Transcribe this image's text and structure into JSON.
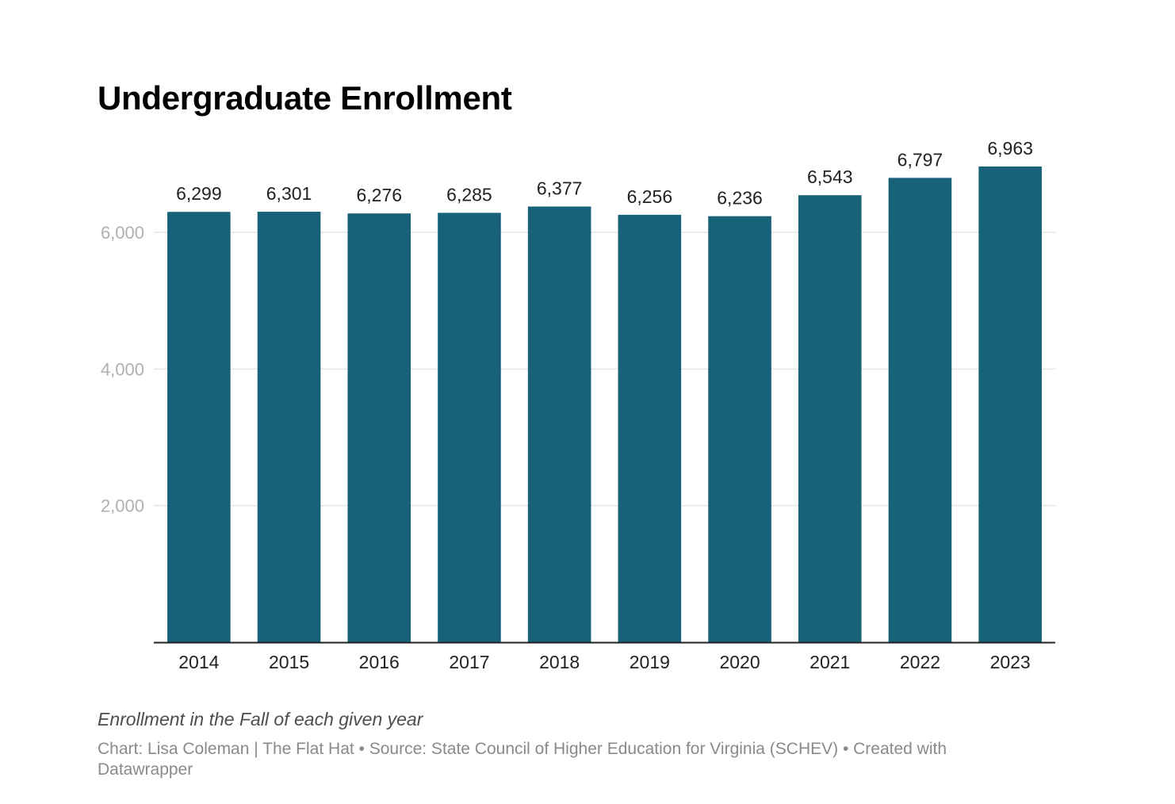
{
  "chart_data": {
    "type": "bar",
    "title": "Undergraduate Enrollment",
    "categories": [
      "2014",
      "2015",
      "2016",
      "2017",
      "2018",
      "2019",
      "2020",
      "2021",
      "2022",
      "2023"
    ],
    "values": [
      6299,
      6301,
      6276,
      6285,
      6377,
      6256,
      6236,
      6543,
      6797,
      6963
    ],
    "value_labels": [
      "6,299",
      "6,301",
      "6,276",
      "6,285",
      "6,377",
      "6,256",
      "6,236",
      "6,543",
      "6,797",
      "6,963"
    ],
    "y_ticks": [
      2000,
      4000,
      6000
    ],
    "y_tick_labels": [
      "2,000",
      "4,000",
      "6,000"
    ],
    "ylim": [
      0,
      6963
    ],
    "xlabel": "",
    "ylabel": "",
    "grid": true,
    "legend": "none",
    "notes": "Enrollment in the Fall of each given year",
    "credits": "Chart: Lisa Coleman | The Flat Hat • Source: State Council of Higher Education for Virginia (SCHEV) • Created with Datawrapper",
    "colors": {
      "bar": "#176279",
      "grid": "#e5e5e5",
      "axis": "#222222",
      "tick_label": "#b0b0b0",
      "value_label": "#222222"
    }
  }
}
